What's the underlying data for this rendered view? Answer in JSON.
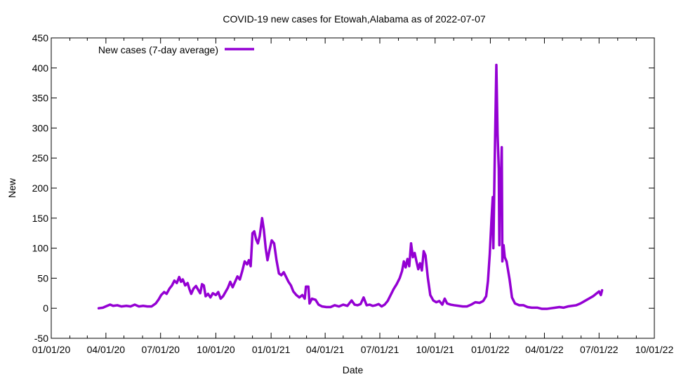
{
  "chart_data": {
    "type": "line",
    "title": "COVID-19 new cases for Etowah,Alabama as of 2022-07-07",
    "xlabel": "Date",
    "ylabel": "New",
    "xlim": [
      "2020-01-01",
      "2022-10-01"
    ],
    "ylim": [
      -50,
      450
    ],
    "x_ticks": [
      "01/01/20",
      "04/01/20",
      "07/01/20",
      "10/01/20",
      "01/01/21",
      "04/01/21",
      "07/01/21",
      "10/01/21",
      "01/01/22",
      "04/01/22",
      "07/01/22",
      "10/01/22"
    ],
    "x_tick_dates": [
      "2020-01-01",
      "2020-04-01",
      "2020-07-01",
      "2020-10-01",
      "2021-01-01",
      "2021-04-01",
      "2021-07-01",
      "2021-10-01",
      "2022-01-01",
      "2022-04-01",
      "2022-07-01",
      "2022-10-01"
    ],
    "y_ticks": [
      -50,
      0,
      50,
      100,
      150,
      200,
      250,
      300,
      350,
      400,
      450
    ],
    "grid": false,
    "legend_position": "top-left",
    "series": [
      {
        "name": "New cases (7-day average)",
        "color": "#9400d3",
        "points": [
          [
            "2020-03-20",
            0
          ],
          [
            "2020-03-27",
            1
          ],
          [
            "2020-04-03",
            4
          ],
          [
            "2020-04-08",
            6
          ],
          [
            "2020-04-13",
            4
          ],
          [
            "2020-04-20",
            5
          ],
          [
            "2020-04-27",
            3
          ],
          [
            "2020-05-05",
            4
          ],
          [
            "2020-05-12",
            3
          ],
          [
            "2020-05-19",
            6
          ],
          [
            "2020-05-26",
            3
          ],
          [
            "2020-06-02",
            4
          ],
          [
            "2020-06-09",
            3
          ],
          [
            "2020-06-16",
            3
          ],
          [
            "2020-06-23",
            8
          ],
          [
            "2020-06-28",
            15
          ],
          [
            "2020-07-02",
            22
          ],
          [
            "2020-07-07",
            27
          ],
          [
            "2020-07-11",
            24
          ],
          [
            "2020-07-16",
            33
          ],
          [
            "2020-07-20",
            38
          ],
          [
            "2020-07-24",
            46
          ],
          [
            "2020-07-28",
            42
          ],
          [
            "2020-08-01",
            52
          ],
          [
            "2020-08-04",
            44
          ],
          [
            "2020-08-07",
            48
          ],
          [
            "2020-08-11",
            38
          ],
          [
            "2020-08-15",
            42
          ],
          [
            "2020-08-18",
            32
          ],
          [
            "2020-08-21",
            24
          ],
          [
            "2020-08-25",
            33
          ],
          [
            "2020-08-29",
            37
          ],
          [
            "2020-09-02",
            30
          ],
          [
            "2020-09-05",
            25
          ],
          [
            "2020-09-08",
            40
          ],
          [
            "2020-09-11",
            38
          ],
          [
            "2020-09-14",
            20
          ],
          [
            "2020-09-18",
            24
          ],
          [
            "2020-09-22",
            18
          ],
          [
            "2020-09-26",
            25
          ],
          [
            "2020-10-01",
            22
          ],
          [
            "2020-10-05",
            27
          ],
          [
            "2020-10-09",
            16
          ],
          [
            "2020-10-13",
            20
          ],
          [
            "2020-10-17",
            27
          ],
          [
            "2020-10-21",
            34
          ],
          [
            "2020-10-25",
            44
          ],
          [
            "2020-10-29",
            35
          ],
          [
            "2020-11-02",
            44
          ],
          [
            "2020-11-06",
            53
          ],
          [
            "2020-11-10",
            48
          ],
          [
            "2020-11-14",
            62
          ],
          [
            "2020-11-18",
            78
          ],
          [
            "2020-11-22",
            73
          ],
          [
            "2020-11-25",
            80
          ],
          [
            "2020-11-28",
            70
          ],
          [
            "2020-12-01",
            125
          ],
          [
            "2020-12-04",
            128
          ],
          [
            "2020-12-07",
            115
          ],
          [
            "2020-12-10",
            108
          ],
          [
            "2020-12-13",
            120
          ],
          [
            "2020-12-17",
            150
          ],
          [
            "2020-12-20",
            130
          ],
          [
            "2020-12-23",
            100
          ],
          [
            "2020-12-26",
            80
          ],
          [
            "2020-12-29",
            95
          ],
          [
            "2021-01-02",
            113
          ],
          [
            "2021-01-06",
            108
          ],
          [
            "2021-01-10",
            80
          ],
          [
            "2021-01-14",
            58
          ],
          [
            "2021-01-18",
            55
          ],
          [
            "2021-01-22",
            60
          ],
          [
            "2021-01-26",
            52
          ],
          [
            "2021-01-30",
            44
          ],
          [
            "2021-02-03",
            38
          ],
          [
            "2021-02-07",
            28
          ],
          [
            "2021-02-12",
            22
          ],
          [
            "2021-02-17",
            18
          ],
          [
            "2021-02-22",
            22
          ],
          [
            "2021-02-26",
            16
          ],
          [
            "2021-02-28",
            36
          ],
          [
            "2021-03-04",
            36
          ],
          [
            "2021-03-06",
            8
          ],
          [
            "2021-03-10",
            16
          ],
          [
            "2021-03-16",
            14
          ],
          [
            "2021-03-21",
            6
          ],
          [
            "2021-03-27",
            3
          ],
          [
            "2021-04-03",
            2
          ],
          [
            "2021-04-10",
            2
          ],
          [
            "2021-04-17",
            5
          ],
          [
            "2021-04-24",
            3
          ],
          [
            "2021-05-01",
            6
          ],
          [
            "2021-05-08",
            4
          ],
          [
            "2021-05-15",
            13
          ],
          [
            "2021-05-20",
            6
          ],
          [
            "2021-05-25",
            5
          ],
          [
            "2021-05-30",
            7
          ],
          [
            "2021-06-04",
            18
          ],
          [
            "2021-06-09",
            5
          ],
          [
            "2021-06-14",
            6
          ],
          [
            "2021-06-19",
            4
          ],
          [
            "2021-06-24",
            5
          ],
          [
            "2021-06-29",
            7
          ],
          [
            "2021-07-04",
            3
          ],
          [
            "2021-07-09",
            6
          ],
          [
            "2021-07-14",
            12
          ],
          [
            "2021-07-19",
            22
          ],
          [
            "2021-07-24",
            32
          ],
          [
            "2021-07-29",
            40
          ],
          [
            "2021-08-03",
            50
          ],
          [
            "2021-08-07",
            62
          ],
          [
            "2021-08-10",
            78
          ],
          [
            "2021-08-13",
            68
          ],
          [
            "2021-08-16",
            82
          ],
          [
            "2021-08-19",
            70
          ],
          [
            "2021-08-22",
            108
          ],
          [
            "2021-08-25",
            85
          ],
          [
            "2021-08-28",
            92
          ],
          [
            "2021-08-31",
            78
          ],
          [
            "2021-09-03",
            65
          ],
          [
            "2021-09-06",
            75
          ],
          [
            "2021-09-09",
            63
          ],
          [
            "2021-09-12",
            95
          ],
          [
            "2021-09-15",
            88
          ],
          [
            "2021-09-19",
            50
          ],
          [
            "2021-09-23",
            22
          ],
          [
            "2021-09-28",
            13
          ],
          [
            "2021-10-03",
            10
          ],
          [
            "2021-10-08",
            12
          ],
          [
            "2021-10-13",
            6
          ],
          [
            "2021-10-17",
            16
          ],
          [
            "2021-10-21",
            8
          ],
          [
            "2021-10-27",
            6
          ],
          [
            "2021-11-02",
            5
          ],
          [
            "2021-11-09",
            4
          ],
          [
            "2021-11-16",
            3
          ],
          [
            "2021-11-23",
            3
          ],
          [
            "2021-11-30",
            6
          ],
          [
            "2021-12-07",
            10
          ],
          [
            "2021-12-14",
            9
          ],
          [
            "2021-12-20",
            12
          ],
          [
            "2021-12-25",
            20
          ],
          [
            "2021-12-28",
            45
          ],
          [
            "2021-12-31",
            90
          ],
          [
            "2022-01-03",
            150
          ],
          [
            "2022-01-05",
            185
          ],
          [
            "2022-01-06",
            100
          ],
          [
            "2022-01-08",
            230
          ],
          [
            "2022-01-11",
            405
          ],
          [
            "2022-01-13",
            290
          ],
          [
            "2022-01-15",
            232
          ],
          [
            "2022-01-16",
            105
          ],
          [
            "2022-01-17",
            210
          ],
          [
            "2022-01-19",
            232
          ],
          [
            "2022-01-20",
            268
          ],
          [
            "2022-01-21",
            78
          ],
          [
            "2022-01-23",
            105
          ],
          [
            "2022-01-25",
            85
          ],
          [
            "2022-01-28",
            78
          ],
          [
            "2022-02-02",
            48
          ],
          [
            "2022-02-06",
            18
          ],
          [
            "2022-02-11",
            8
          ],
          [
            "2022-02-18",
            5
          ],
          [
            "2022-02-25",
            5
          ],
          [
            "2022-03-04",
            2
          ],
          [
            "2022-03-11",
            1
          ],
          [
            "2022-03-20",
            1
          ],
          [
            "2022-03-28",
            -1
          ],
          [
            "2022-04-05",
            -1
          ],
          [
            "2022-04-12",
            0
          ],
          [
            "2022-04-19",
            1
          ],
          [
            "2022-04-26",
            2
          ],
          [
            "2022-05-03",
            1
          ],
          [
            "2022-05-10",
            3
          ],
          [
            "2022-05-17",
            4
          ],
          [
            "2022-05-24",
            5
          ],
          [
            "2022-05-31",
            8
          ],
          [
            "2022-06-07",
            12
          ],
          [
            "2022-06-14",
            16
          ],
          [
            "2022-06-21",
            20
          ],
          [
            "2022-06-26",
            24
          ],
          [
            "2022-07-01",
            28
          ],
          [
            "2022-07-04",
            22
          ],
          [
            "2022-07-06",
            30
          ]
        ]
      }
    ]
  }
}
